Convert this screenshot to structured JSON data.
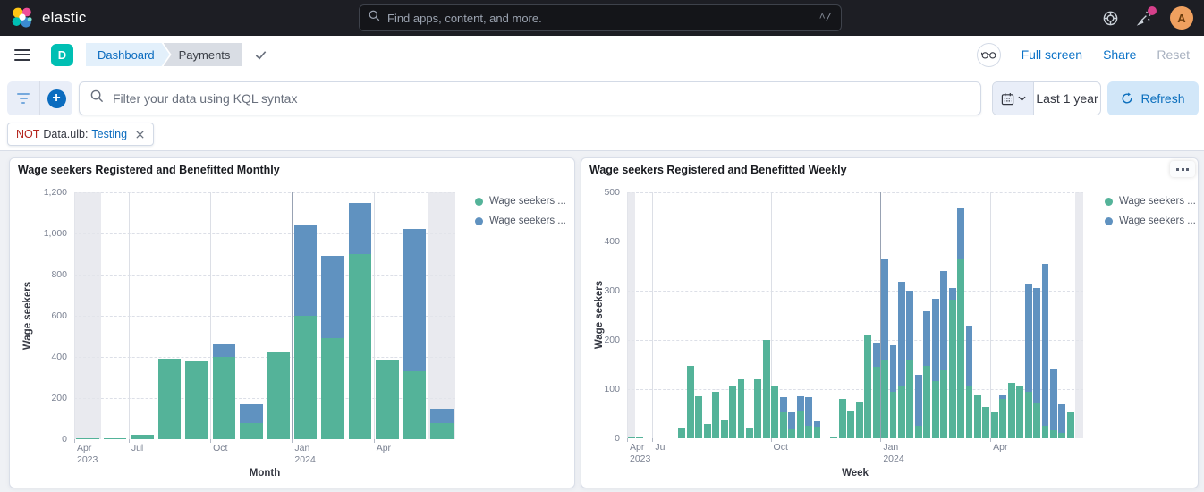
{
  "header": {
    "brand": "elastic",
    "search_placeholder": "Find apps, content, and more.",
    "shortcut": "^/",
    "avatar_initial": "A",
    "icons": [
      "help-ring-icon",
      "news-feed-icon",
      "user-avatar"
    ]
  },
  "nav": {
    "app_badge": "D",
    "breadcrumbs": [
      "Dashboard",
      "Payments"
    ],
    "saved_state_icon": "checkmark-icon",
    "view_mode_icon": "glasses-icon",
    "actions": [
      "Full screen",
      "Share",
      "Reset"
    ]
  },
  "toolbar": {
    "filter_menu_icon": "filter-lines-icon",
    "add_filter_icon": "plus-circle-icon",
    "kql_placeholder": "Filter your data using KQL syntax",
    "time_range": "Last 1 year",
    "refresh_label": "Refresh",
    "refresh_icon": "refresh-icon",
    "calendar_icon": "calendar-icon"
  },
  "filter_pill": {
    "negate": "NOT",
    "field": "Data.ulb:",
    "value": "Testing"
  },
  "colors": {
    "header_bg": "#1d1e24",
    "accent_blue": "#0b6cbf",
    "badge_teal": "#00BFB3",
    "series_green": "#54B399",
    "series_blue": "#6092C0",
    "partial_band": "#e3e5eb",
    "canvas_bg": "#eff1f5",
    "notification_pink": "#d6408b",
    "avatar_orange": "#efa05f",
    "refresh_bg": "#d2e7f9"
  },
  "chart_data": [
    {
      "type": "bar",
      "stacked": true,
      "title": "Wage seekers Registered and Benefitted Monthly",
      "xlabel": "Month",
      "ylabel": "Wage seekers",
      "ymax": 1200,
      "slots": 14,
      "grid": true,
      "legend_position": "right",
      "categories": [
        "Apr 2023",
        "May 2023",
        "Jul 2023",
        "Aug 2023",
        "Sep 2023",
        "Oct 2023",
        "Nov 2023",
        "Dec 2023",
        "Jan 2024",
        "Feb 2024",
        "Mar 2024",
        "Apr 2024",
        "May 2024",
        "Jun 2024"
      ],
      "yticks": [
        {
          "value": 0,
          "label": "0"
        },
        {
          "value": 200,
          "label": "200"
        },
        {
          "value": 400,
          "label": "400"
        },
        {
          "value": 600,
          "label": "600"
        },
        {
          "value": 800,
          "label": "800"
        },
        {
          "value": 1000,
          "label": "1,000"
        },
        {
          "value": 1200,
          "label": "1,200"
        }
      ],
      "xticks": [
        {
          "slot": 0,
          "lines": [
            "Apr",
            "2023"
          ]
        },
        {
          "slot": 2,
          "lines": [
            "Jul"
          ]
        },
        {
          "slot": 5,
          "lines": [
            "Oct"
          ]
        },
        {
          "slot": 8,
          "lines": [
            "Jan",
            "2024"
          ],
          "strong": true
        },
        {
          "slot": 11,
          "lines": [
            "Apr"
          ]
        }
      ],
      "partial_bucket_slots": [
        0,
        13
      ],
      "series": [
        {
          "name": "Wage seekers ...",
          "color": "#54B399",
          "values": [
            5,
            3,
            20,
            390,
            380,
            400,
            80,
            425,
            600,
            490,
            900,
            385,
            330,
            80
          ]
        },
        {
          "name": "Wage seekers ...",
          "color": "#6092C0",
          "values": [
            0,
            0,
            0,
            0,
            0,
            60,
            90,
            0,
            440,
            400,
            250,
            0,
            690,
            70
          ]
        }
      ]
    },
    {
      "type": "bar",
      "stacked": true,
      "title": "Wage seekers Registered and Benefitted Weekly",
      "xlabel": "Week",
      "ylabel": "Wage seekers",
      "ymax": 500,
      "slots": 54,
      "grid": true,
      "legend_position": "right",
      "categories": "54 weekly buckets, Apr 2023 - Jun 2024 (empty late-spring 2023 weeks omitted)",
      "yticks": [
        {
          "value": 0,
          "label": "0"
        },
        {
          "value": 100,
          "label": "100"
        },
        {
          "value": 200,
          "label": "200"
        },
        {
          "value": 300,
          "label": "300"
        },
        {
          "value": 400,
          "label": "400"
        },
        {
          "value": 500,
          "label": "500"
        }
      ],
      "xticks": [
        {
          "slot": 0,
          "lines": [
            "Apr",
            "2023"
          ]
        },
        {
          "slot": 3,
          "lines": [
            "Jul"
          ]
        },
        {
          "slot": 17,
          "lines": [
            "Oct"
          ]
        },
        {
          "slot": 30,
          "lines": [
            "Jan",
            "2024"
          ],
          "strong": true
        },
        {
          "slot": 43,
          "lines": [
            "Apr"
          ]
        }
      ],
      "partial_bucket_slots": [
        0,
        53
      ],
      "series": [
        {
          "name": "Wage seekers ...",
          "color": "#54B399",
          "values": [
            3,
            2,
            0,
            0,
            0,
            0,
            20,
            148,
            85,
            30,
            95,
            38,
            105,
            120,
            20,
            120,
            200,
            105,
            52,
            18,
            57,
            25,
            23,
            0,
            2,
            80,
            57,
            75,
            210,
            145,
            160,
            95,
            105,
            160,
            25,
            148,
            117,
            138,
            282,
            365,
            105,
            87,
            64,
            53,
            80,
            112,
            106,
            95,
            73,
            26,
            16,
            11,
            53,
            0
          ]
        },
        {
          "name": "Wage seekers ...",
          "color": "#6092C0",
          "values": [
            0,
            0,
            0,
            0,
            0,
            0,
            0,
            0,
            0,
            0,
            0,
            0,
            0,
            0,
            0,
            0,
            0,
            0,
            31,
            34,
            28,
            58,
            12,
            0,
            0,
            0,
            0,
            0,
            0,
            50,
            205,
            95,
            213,
            140,
            105,
            110,
            167,
            202,
            24,
            105,
            125,
            0,
            0,
            0,
            8,
            0,
            0,
            220,
            232,
            329,
            124,
            58,
            0,
            0
          ]
        }
      ]
    }
  ]
}
